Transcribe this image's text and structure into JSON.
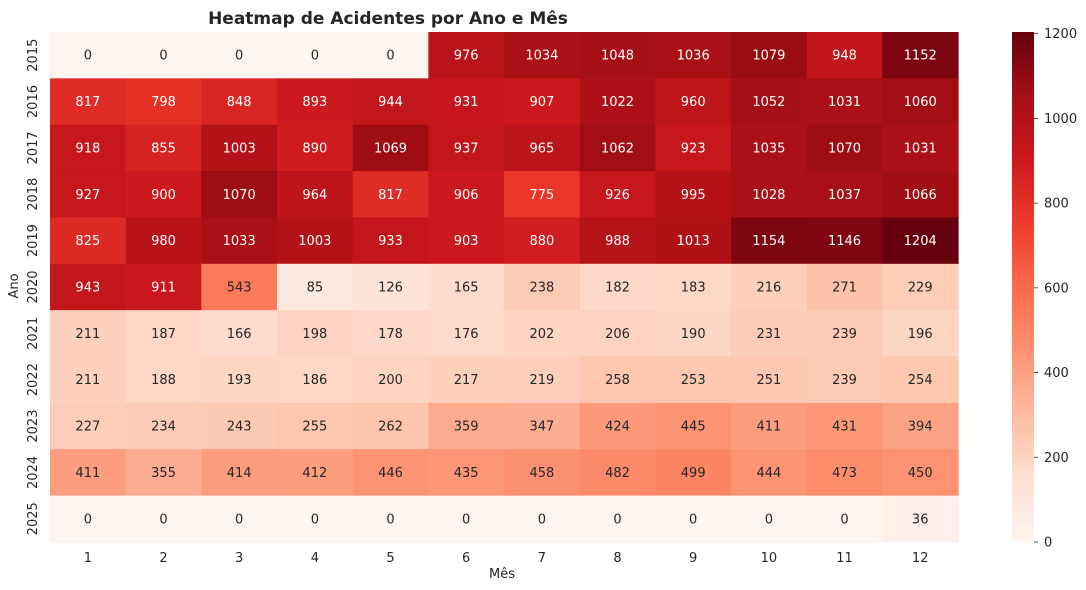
{
  "chart_data": {
    "type": "heatmap",
    "title": "Heatmap de Acidentes por Ano e Mês",
    "xlabel": "Mês",
    "ylabel": "Ano",
    "x_categories": [
      "1",
      "2",
      "3",
      "4",
      "5",
      "6",
      "7",
      "8",
      "9",
      "10",
      "11",
      "12"
    ],
    "y_categories": [
      "2015",
      "2016",
      "2017",
      "2018",
      "2019",
      "2020",
      "2021",
      "2022",
      "2023",
      "2024",
      "2025"
    ],
    "values": [
      [
        0,
        0,
        0,
        0,
        0,
        976,
        1034,
        1048,
        1036,
        1079,
        948,
        1152
      ],
      [
        817,
        798,
        848,
        893,
        944,
        931,
        907,
        1022,
        960,
        1052,
        1031,
        1060
      ],
      [
        918,
        855,
        1003,
        890,
        1069,
        937,
        965,
        1062,
        923,
        1035,
        1070,
        1031
      ],
      [
        927,
        900,
        1070,
        964,
        817,
        906,
        775,
        926,
        995,
        1028,
        1037,
        1066
      ],
      [
        825,
        980,
        1033,
        1003,
        933,
        903,
        880,
        988,
        1013,
        1154,
        1146,
        1204
      ],
      [
        943,
        911,
        543,
        85,
        126,
        165,
        238,
        182,
        183,
        216,
        271,
        229
      ],
      [
        211,
        187,
        166,
        198,
        178,
        176,
        202,
        206,
        190,
        231,
        239,
        196
      ],
      [
        211,
        188,
        193,
        186,
        200,
        217,
        219,
        258,
        253,
        251,
        239,
        254
      ],
      [
        227,
        234,
        243,
        255,
        262,
        359,
        347,
        424,
        445,
        411,
        431,
        394
      ],
      [
        411,
        355,
        414,
        412,
        446,
        435,
        458,
        482,
        499,
        444,
        473,
        450
      ],
      [
        0,
        0,
        0,
        0,
        0,
        0,
        0,
        0,
        0,
        0,
        0,
        36
      ]
    ],
    "colormap": "Reds",
    "vmin": 0,
    "vmax": 1204,
    "colorbar_ticks": [
      "0",
      "200",
      "400",
      "600",
      "800",
      "1000",
      "1200"
    ],
    "colorbar_tick_values": [
      0,
      200,
      400,
      600,
      800,
      1000,
      1200
    ],
    "legend_position": "right"
  }
}
